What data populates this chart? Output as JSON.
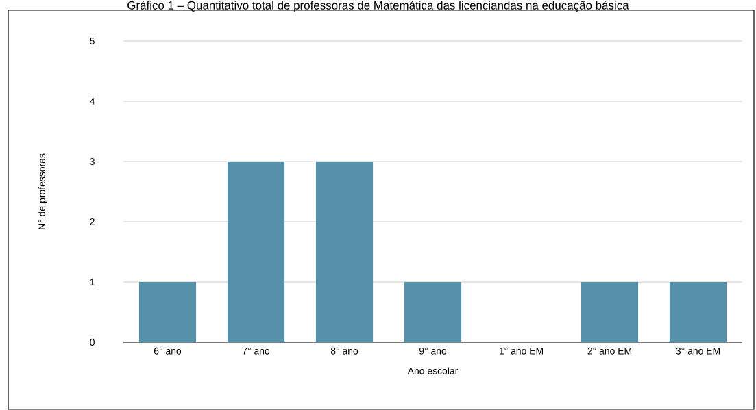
{
  "chart_data": {
    "type": "bar",
    "title": "Gráfico 1 – Quantitativo total de professoras de Matemática das licenciandas na educação básica",
    "xlabel": "Ano escolar",
    "ylabel": "N° de professoras",
    "categories": [
      "6° ano",
      "7° ano",
      "8° ano",
      "9° ano",
      "1° ano EM",
      "2° ano EM",
      "3° ano EM"
    ],
    "values": [
      1,
      3,
      3,
      1,
      0,
      1,
      1
    ],
    "color": "#5790ab",
    "ylim": [
      0,
      5
    ],
    "yticks": [
      0,
      1,
      2,
      3,
      4,
      5
    ],
    "grid": "y",
    "legend": false
  }
}
